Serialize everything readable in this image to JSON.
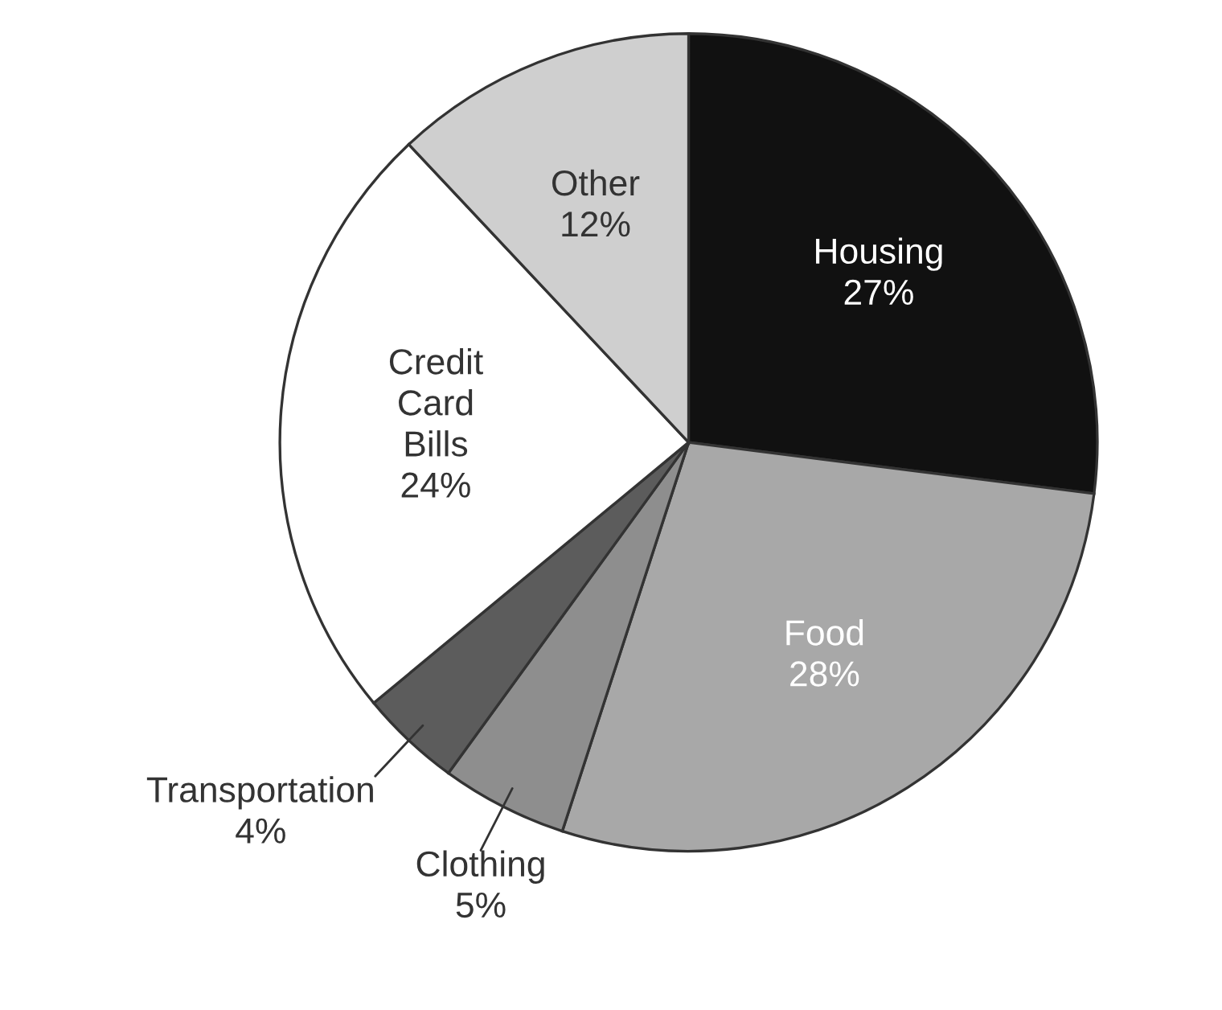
{
  "chart_data": {
    "type": "pie",
    "categories": [
      "Housing",
      "Food",
      "Clothing",
      "Transportation",
      "Credit Card Bills",
      "Other"
    ],
    "values": [
      27,
      28,
      5,
      4,
      24,
      12
    ],
    "value_labels": [
      "27%",
      "28%",
      "5%",
      "4%",
      "24%",
      "12%"
    ],
    "colors": [
      "#111111",
      "#a8a8a8",
      "#8e8e8e",
      "#5c5c5c",
      "#ffffff",
      "#cfcfcf"
    ]
  }
}
